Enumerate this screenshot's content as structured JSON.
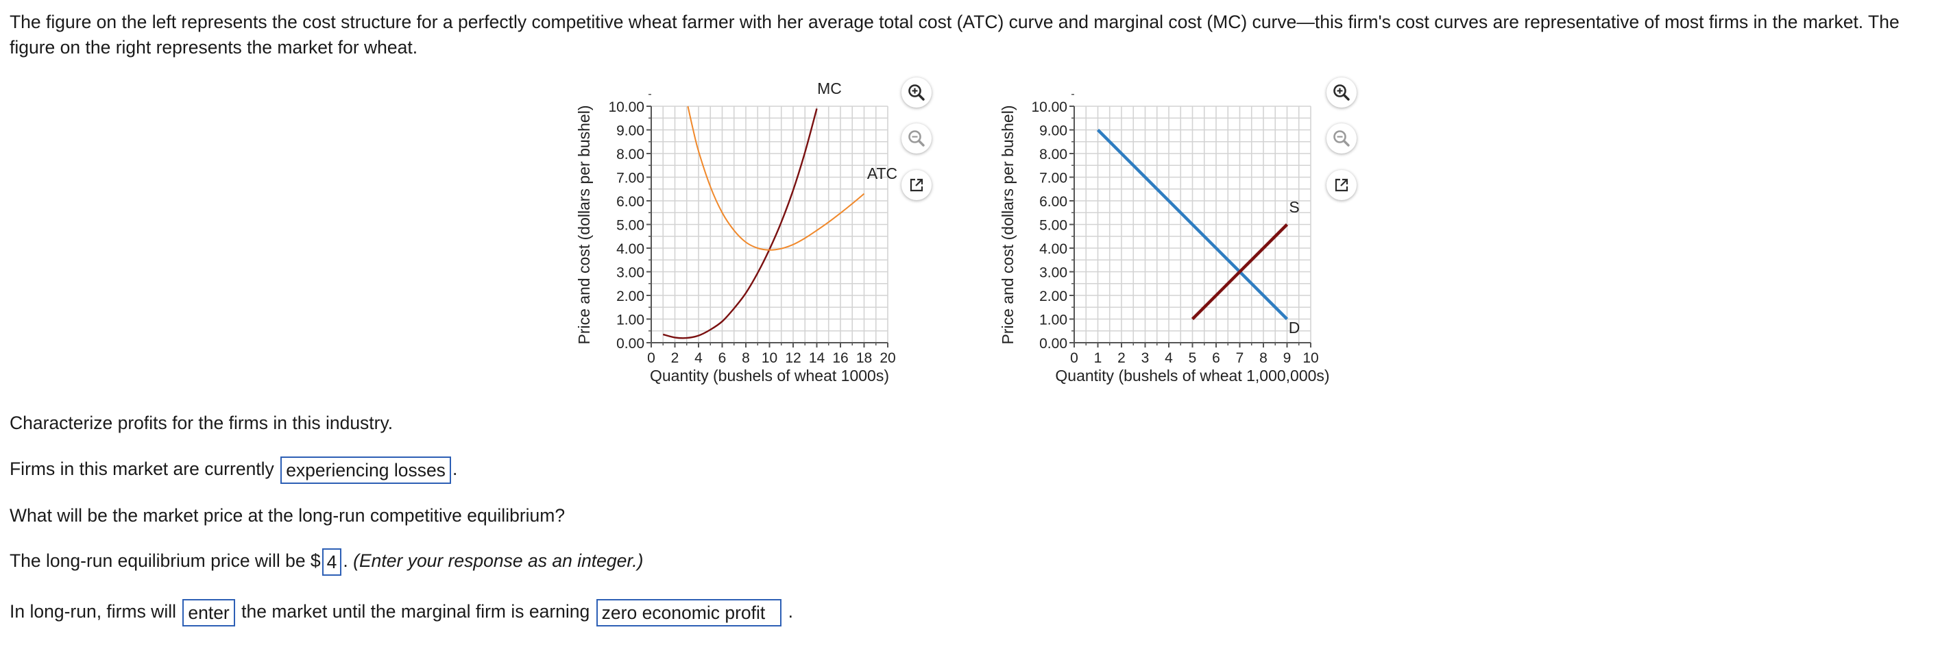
{
  "intro": "The figure on the left represents the cost structure for a perfectly competitive wheat farmer with her average total cost (ATC) curve and marginal cost (MC) curve—this firm's cost curves are representative of most firms in the market. The figure on the right represents the market for wheat.",
  "chart_data": [
    {
      "type": "line",
      "xlabel": "Quantity (bushels of wheat 1000s)",
      "ylabel": "Price and cost (dollars per bushel)",
      "xlim": [
        0,
        20
      ],
      "ylim": [
        0,
        10
      ],
      "x_ticks": [
        "0",
        "2",
        "4",
        "6",
        "8",
        "10",
        "12",
        "14",
        "16",
        "18",
        "20"
      ],
      "y_ticks": [
        "0.00",
        "1.00",
        "2.00",
        "3.00",
        "4.00",
        "5.00",
        "6.00",
        "7.00",
        "8.00",
        "9.00",
        "10.00"
      ],
      "grid": true,
      "series": [
        {
          "name": "MC",
          "color": "#7a1010",
          "x": [
            1,
            2,
            3,
            4,
            5,
            6,
            7,
            8,
            9,
            10,
            11,
            12,
            13,
            14
          ],
          "y": [
            0.35,
            0.22,
            0.2,
            0.3,
            0.55,
            0.9,
            1.45,
            2.1,
            2.95,
            3.95,
            5.1,
            6.45,
            8.05,
            9.9
          ]
        },
        {
          "name": "ATC",
          "color": "#f0882a",
          "x": [
            3.1,
            3.5,
            4,
            5,
            6,
            7,
            8,
            9,
            10,
            11,
            12,
            13,
            14,
            15,
            16,
            17,
            18
          ],
          "y": [
            10,
            9.1,
            8.1,
            6.6,
            5.5,
            4.75,
            4.25,
            4.0,
            3.92,
            3.98,
            4.15,
            4.42,
            4.75,
            5.1,
            5.48,
            5.88,
            6.3
          ]
        }
      ]
    },
    {
      "type": "line",
      "xlabel": "Quantity (bushels of wheat 1,000,000s)",
      "ylabel": "Price and cost (dollars per bushel)",
      "xlim": [
        0,
        10
      ],
      "ylim": [
        0,
        10
      ],
      "x_ticks": [
        "0",
        "1",
        "2",
        "3",
        "4",
        "5",
        "6",
        "7",
        "8",
        "9",
        "10"
      ],
      "y_ticks": [
        "0.00",
        "1.00",
        "2.00",
        "3.00",
        "4.00",
        "5.00",
        "6.00",
        "7.00",
        "8.00",
        "9.00",
        "10.00"
      ],
      "grid": true,
      "series": [
        {
          "name": "D",
          "color": "#2f7dc1",
          "x": [
            1,
            9
          ],
          "y": [
            9,
            1
          ]
        },
        {
          "name": "S",
          "color": "#7a1010",
          "x": [
            5,
            9
          ],
          "y": [
            1,
            5
          ]
        }
      ]
    }
  ],
  "questions": {
    "q1": "Characterize profits for the firms in this industry.",
    "q2_pre": "Firms in this market are currently",
    "q2_ans": "experiencing losses",
    "q2_post": ".",
    "q3": "What will be the market price at the long-run competitive equilibrium?",
    "q4_pre": "The long-run equilibrium price will be $",
    "q4_ans": "4",
    "q4_post": ".",
    "q4_hint": "(Enter your response as an integer.)",
    "q5_pre": "In long-run, firms will",
    "q5_ans1": "enter",
    "q5_mid": "the market until the marginal firm is earning",
    "q5_ans2": "zero economic profit",
    "q5_post": "."
  },
  "icons": {
    "zoom_in": "zoom-in-icon",
    "zoom_out": "zoom-out-icon",
    "popout": "popout-icon"
  }
}
